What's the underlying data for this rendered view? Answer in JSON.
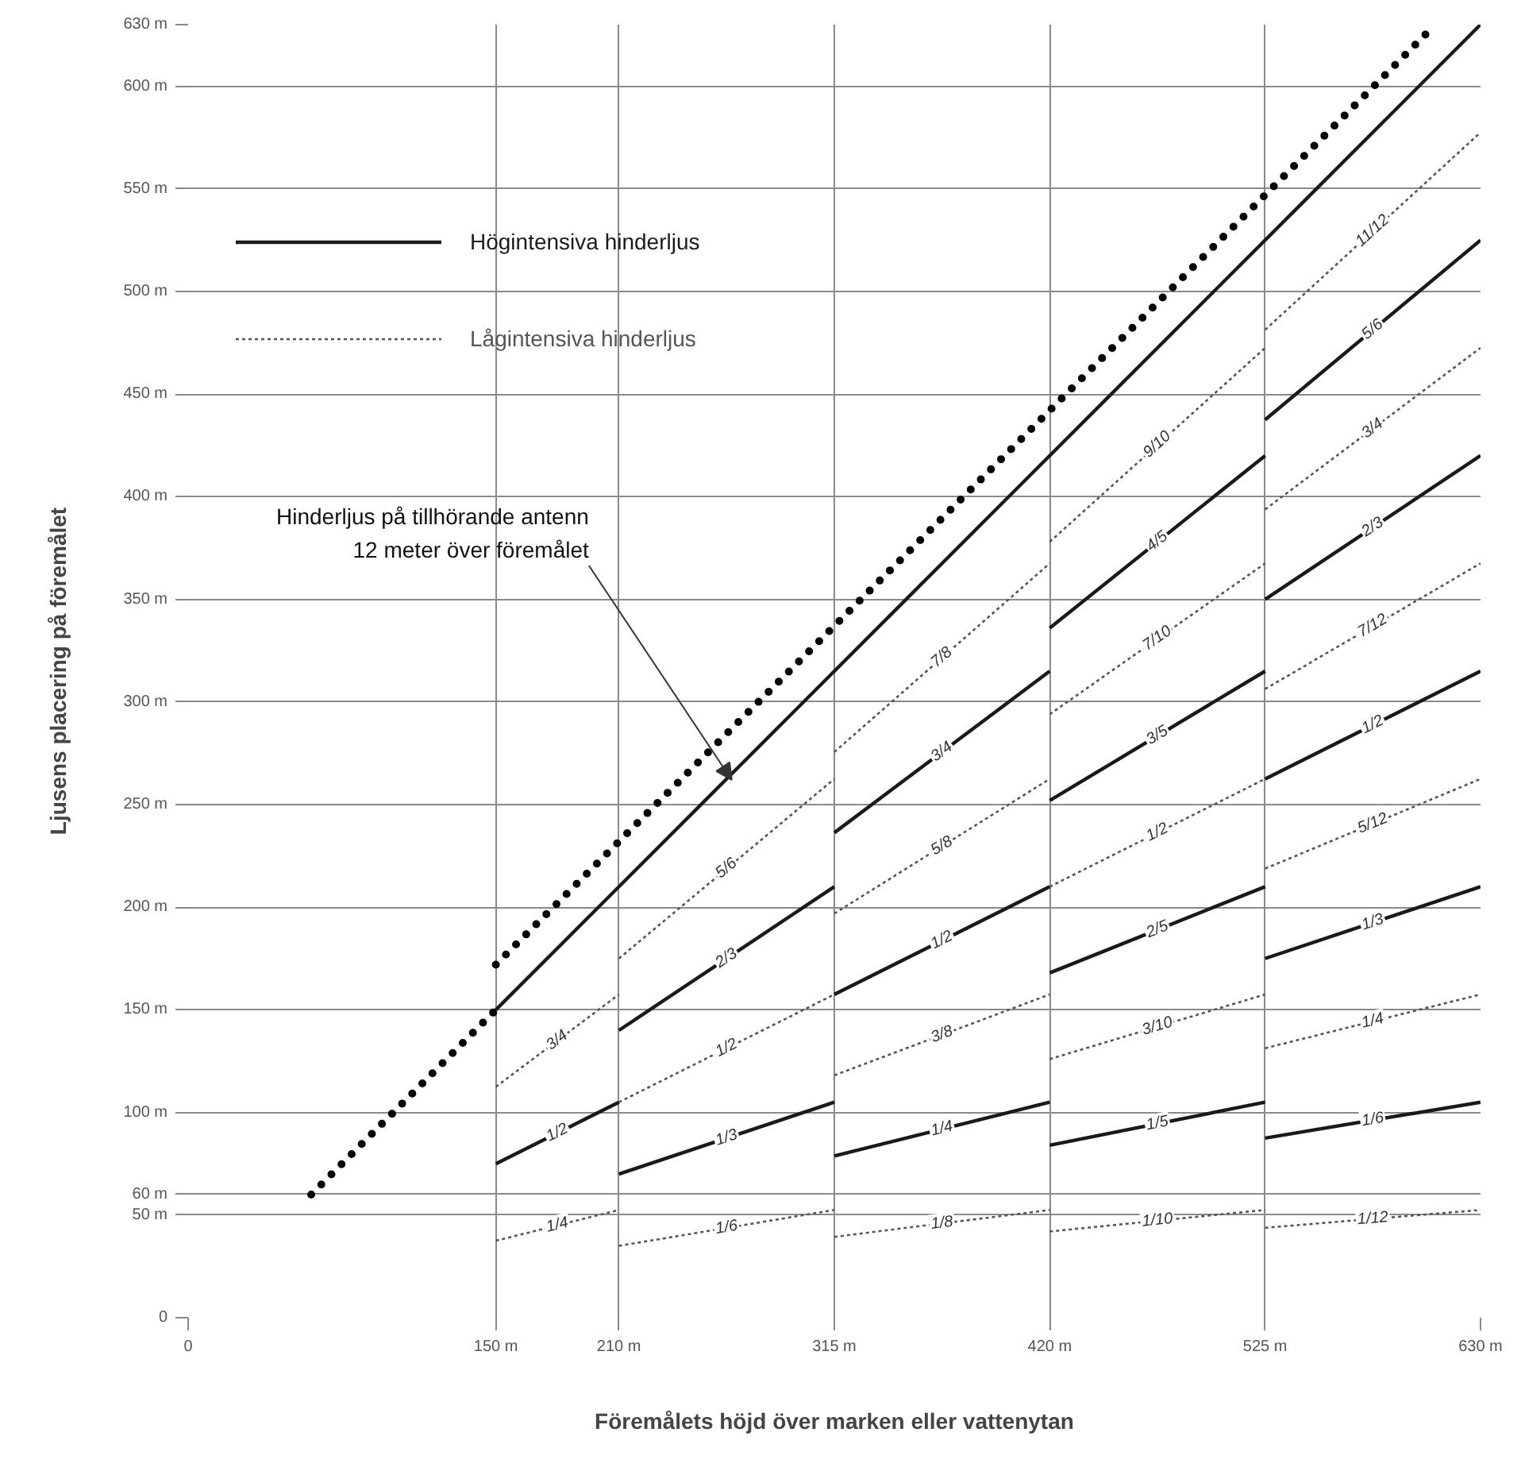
{
  "chart_data": {
    "type": "line",
    "xlabel": "Föremålets höjd över marken eller vattenytan",
    "ylabel": "Ljusens placering på föremålet",
    "xlim": [
      0,
      630
    ],
    "ylim": [
      0,
      630
    ],
    "xticks": [
      0,
      {
        "value": 150,
        "label": "150 m"
      },
      {
        "value": 210,
        "label": "210 m"
      },
      {
        "value": 315,
        "label": "315 m"
      },
      {
        "value": 420,
        "label": "420 m"
      },
      {
        "value": 525,
        "label": "525 m"
      },
      {
        "value": 630,
        "label": "630 m"
      }
    ],
    "yticks": [
      0,
      {
        "value": 50,
        "label": "50 m"
      },
      {
        "value": 60,
        "label": "60 m"
      },
      {
        "value": 100,
        "label": "100 m"
      },
      {
        "value": 150,
        "label": "150 m"
      },
      {
        "value": 200,
        "label": "200 m"
      },
      {
        "value": 250,
        "label": "250 m"
      },
      {
        "value": 300,
        "label": "300 m"
      },
      {
        "value": 350,
        "label": "350 m"
      },
      {
        "value": 400,
        "label": "400 m"
      },
      {
        "value": 450,
        "label": "450 m"
      },
      {
        "value": 500,
        "label": "500 m"
      },
      {
        "value": 550,
        "label": "550 m"
      },
      {
        "value": 600,
        "label": "600 m"
      },
      {
        "value": 630,
        "label": "630 m"
      }
    ],
    "grid": true,
    "legend": "top left",
    "series": [
      {
        "name": "Högintensiva hinderljus",
        "color": "#1a1a1a",
        "line_style": "solid",
        "x": [
          150,
          630
        ],
        "values": [
          150,
          630
        ]
      },
      {
        "name": "Lågintensiva hinderljus",
        "color": "#555555",
        "line_style": "dashed",
        "x": [
          150,
          210
        ],
        "values": [
          37.5,
          52.5
        ]
      },
      {
        "color": "#1a1a1a",
        "line_style": "solid",
        "x": [
          150,
          210
        ],
        "values": [
          75,
          105
        ]
      },
      {
        "color": "#1a1a1a",
        "line_style": "solid",
        "x": [
          210,
          315
        ],
        "values": [
          70,
          105
        ]
      },
      {
        "color": "#1a1a1a",
        "line_style": "solid",
        "x": [
          210,
          315
        ],
        "values": [
          140,
          210
        ]
      },
      {
        "color": "#1a1a1a",
        "line_style": "solid",
        "x": [
          315,
          420
        ],
        "values": [
          78.8,
          105
        ]
      },
      {
        "color": "#1a1a1a",
        "line_style": "solid",
        "x": [
          315,
          420
        ],
        "values": [
          157.5,
          210
        ]
      },
      {
        "color": "#1a1a1a",
        "line_style": "solid",
        "x": [
          315,
          420
        ],
        "values": [
          236.3,
          315
        ]
      },
      {
        "color": "#1a1a1a",
        "line_style": "solid",
        "x": [
          420,
          525
        ],
        "values": [
          84,
          105
        ]
      },
      {
        "color": "#1a1a1a",
        "line_style": "solid",
        "x": [
          420,
          525
        ],
        "values": [
          168,
          210
        ]
      },
      {
        "color": "#1a1a1a",
        "line_style": "solid",
        "x": [
          420,
          525
        ],
        "values": [
          252,
          315
        ]
      },
      {
        "color": "#1a1a1a",
        "line_style": "solid",
        "x": [
          420,
          525
        ],
        "values": [
          336,
          420
        ]
      },
      {
        "color": "#1a1a1a",
        "line_style": "solid",
        "x": [
          525,
          630
        ],
        "values": [
          87.5,
          105
        ]
      },
      {
        "color": "#1a1a1a",
        "line_style": "solid",
        "x": [
          525,
          630
        ],
        "values": [
          175,
          210
        ]
      },
      {
        "color": "#1a1a1a",
        "line_style": "solid",
        "x": [
          525,
          630
        ],
        "values": [
          262.5,
          315
        ]
      },
      {
        "color": "#1a1a1a",
        "line_style": "solid",
        "x": [
          525,
          630
        ],
        "values": [
          350,
          420
        ]
      },
      {
        "color": "#1a1a1a",
        "line_style": "solid",
        "x": [
          525,
          630
        ],
        "values": [
          437.5,
          525
        ]
      },
      {
        "color": "#555555",
        "line_style": "dashed",
        "x": [
          150,
          210
        ],
        "values": [
          112.5,
          157.5
        ]
      },
      {
        "color": "#555555",
        "line_style": "dashed",
        "x": [
          210,
          315
        ],
        "values": [
          35,
          52.5
        ]
      },
      {
        "color": "#555555",
        "line_style": "dashed",
        "x": [
          210,
          315
        ],
        "values": [
          105,
          157.5
        ]
      },
      {
        "color": "#555555",
        "line_style": "dashed",
        "x": [
          210,
          315
        ],
        "values": [
          175,
          262.5
        ]
      },
      {
        "color": "#555555",
        "line_style": "dashed",
        "x": [
          315,
          420
        ],
        "values": [
          39.4,
          52.5
        ]
      },
      {
        "color": "#555555",
        "line_style": "dashed",
        "x": [
          315,
          420
        ],
        "values": [
          118.1,
          157.5
        ]
      },
      {
        "color": "#555555",
        "line_style": "dashed",
        "x": [
          315,
          420
        ],
        "values": [
          196.9,
          262.5
        ]
      },
      {
        "color": "#555555",
        "line_style": "dashed",
        "x": [
          315,
          420
        ],
        "values": [
          275.6,
          367.5
        ]
      },
      {
        "color": "#555555",
        "line_style": "dashed",
        "x": [
          420,
          525
        ],
        "values": [
          42,
          52.5
        ]
      },
      {
        "color": "#555555",
        "line_style": "dashed",
        "x": [
          420,
          525
        ],
        "values": [
          126,
          157.5
        ]
      },
      {
        "color": "#555555",
        "line_style": "dashed",
        "x": [
          420,
          525
        ],
        "values": [
          210,
          262.5
        ]
      },
      {
        "color": "#555555",
        "line_style": "dashed",
        "x": [
          420,
          525
        ],
        "values": [
          294,
          367.5
        ]
      },
      {
        "color": "#555555",
        "line_style": "dashed",
        "x": [
          420,
          525
        ],
        "values": [
          378,
          472.5
        ]
      },
      {
        "color": "#555555",
        "line_style": "dashed",
        "x": [
          525,
          630
        ],
        "values": [
          43.8,
          52.5
        ]
      },
      {
        "color": "#555555",
        "line_style": "dashed",
        "x": [
          525,
          630
        ],
        "values": [
          131.3,
          157.5
        ]
      },
      {
        "color": "#555555",
        "line_style": "dashed",
        "x": [
          525,
          630
        ],
        "values": [
          218.8,
          262.5
        ]
      },
      {
        "color": "#555555",
        "line_style": "dashed",
        "x": [
          525,
          630
        ],
        "values": [
          306.3,
          367.5
        ]
      },
      {
        "color": "#555555",
        "line_style": "dashed",
        "x": [
          525,
          630
        ],
        "values": [
          393.8,
          472.5
        ]
      },
      {
        "color": "#555555",
        "line_style": "dashed",
        "x": [
          525,
          630
        ],
        "values": [
          481.3,
          577.5
        ]
      },
      {
        "color": "#000000",
        "line_style": "dotted",
        "x": [
          60,
          150
        ],
        "values": [
          60,
          150
        ]
      },
      {
        "color": "#000000",
        "line_style": "dotted",
        "x": [
          150,
          608
        ],
        "values": [
          172,
          630
        ]
      }
    ],
    "annotations": [
      {
        "text": "Hinderljus på tillhörande antenn\n12 meter över föremålet",
        "x": 265,
        "y": 262
      },
      {
        "text": "1/4",
        "x": 180,
        "y": 45
      },
      {
        "text": "1/2",
        "x": 180,
        "y": 90
      },
      {
        "text": "3/4",
        "x": 180,
        "y": 135
      },
      {
        "text": "1/6",
        "x": 262.5,
        "y": 43.8
      },
      {
        "text": "1/3",
        "x": 262.5,
        "y": 87.5
      },
      {
        "text": "1/2",
        "x": 262.5,
        "y": 131.3
      },
      {
        "text": "2/3",
        "x": 262.5,
        "y": 175
      },
      {
        "text": "5/6",
        "x": 262.5,
        "y": 218.8
      },
      {
        "text": "1/8",
        "x": 367.5,
        "y": 45.9
      },
      {
        "text": "1/4",
        "x": 367.5,
        "y": 91.9
      },
      {
        "text": "3/8",
        "x": 367.5,
        "y": 137.8
      },
      {
        "text": "1/2",
        "x": 367.5,
        "y": 183.8
      },
      {
        "text": "5/8",
        "x": 367.5,
        "y": 229.7
      },
      {
        "text": "3/4",
        "x": 367.5,
        "y": 275.6
      },
      {
        "text": "7/8",
        "x": 367.5,
        "y": 321.6
      },
      {
        "text": "1/10",
        "x": 472.5,
        "y": 47.3
      },
      {
        "text": "1/5",
        "x": 472.5,
        "y": 94.5
      },
      {
        "text": "3/10",
        "x": 472.5,
        "y": 141.8
      },
      {
        "text": "2/5",
        "x": 472.5,
        "y": 189
      },
      {
        "text": "1/2",
        "x": 472.5,
        "y": 236.3
      },
      {
        "text": "3/5",
        "x": 472.5,
        "y": 283.5
      },
      {
        "text": "7/10",
        "x": 472.5,
        "y": 330.8
      },
      {
        "text": "4/5",
        "x": 472.5,
        "y": 378
      },
      {
        "text": "9/10",
        "x": 472.5,
        "y": 425.3
      },
      {
        "text": "1/12",
        "x": 577.5,
        "y": 48.1
      },
      {
        "text": "1/6",
        "x": 577.5,
        "y": 96.3
      },
      {
        "text": "1/4",
        "x": 577.5,
        "y": 144.4
      },
      {
        "text": "1/3",
        "x": 577.5,
        "y": 192.5
      },
      {
        "text": "5/12",
        "x": 577.5,
        "y": 240.6
      },
      {
        "text": "1/2",
        "x": 577.5,
        "y": 288.8
      },
      {
        "text": "7/12",
        "x": 577.5,
        "y": 336.9
      },
      {
        "text": "2/3",
        "x": 577.5,
        "y": 385
      },
      {
        "text": "3/4",
        "x": 577.5,
        "y": 433.1
      },
      {
        "text": "5/6",
        "x": 577.5,
        "y": 481.3
      },
      {
        "text": "11/12",
        "x": 577.5,
        "y": 529.4
      }
    ]
  }
}
